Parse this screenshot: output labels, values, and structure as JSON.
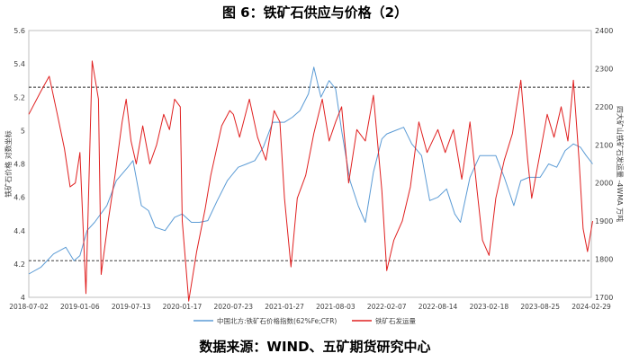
{
  "title": "图 6：铁矿石供应与价格（2）",
  "source": "数据来源：WIND、五矿期货研究中心",
  "chart_data": {
    "type": "line",
    "title": "图 6：铁矿石供应与价格（2）",
    "ylabel_left": "铁矿石价格 对数坐标",
    "ylabel_right": "四大矿山铁矿石发运量 -4WMA 万吨",
    "x_ticks": [
      "2018-07-02",
      "2019-01-06",
      "2019-07-13",
      "2020-01-17",
      "2020-07-23",
      "2021-01-27",
      "2021-08-03",
      "2022-02-07",
      "2022-08-14",
      "2023-02-18",
      "2023-08-25",
      "2024-02-29"
    ],
    "left_axis": {
      "min": 4,
      "max": 5.6,
      "ticks": [
        "4",
        "4.2",
        "4.4",
        "4.6",
        "4.8",
        "5",
        "5.2",
        "5.4",
        "5.6"
      ]
    },
    "right_axis": {
      "min": 1700,
      "max": 2400,
      "ticks": [
        "1700",
        "1800",
        "1900",
        "2000",
        "2100",
        "2200",
        "2300",
        "2400"
      ]
    },
    "reference_lines_left": [
      5.26,
      4.22
    ],
    "grid": false,
    "legend_position": "bottom-center",
    "series": [
      {
        "name": "中国北方:铁矿石价格指数(62%Fe;CFR)",
        "axis": "left",
        "color": "#5B9BD5",
        "points": [
          [
            "2018-07-02",
            4.14
          ],
          [
            "2018-08-15",
            4.18
          ],
          [
            "2018-10-01",
            4.26
          ],
          [
            "2018-11-15",
            4.3
          ],
          [
            "2018-12-15",
            4.22
          ],
          [
            "2019-01-06",
            4.25
          ],
          [
            "2019-02-01",
            4.4
          ],
          [
            "2019-03-01",
            4.45
          ],
          [
            "2019-04-15",
            4.55
          ],
          [
            "2019-05-20",
            4.7
          ],
          [
            "2019-07-01",
            4.78
          ],
          [
            "2019-07-20",
            4.82
          ],
          [
            "2019-08-20",
            4.55
          ],
          [
            "2019-09-15",
            4.52
          ],
          [
            "2019-10-10",
            4.42
          ],
          [
            "2019-11-15",
            4.4
          ],
          [
            "2019-12-20",
            4.48
          ],
          [
            "2020-01-17",
            4.5
          ],
          [
            "2020-02-20",
            4.45
          ],
          [
            "2020-03-20",
            4.45
          ],
          [
            "2020-04-20",
            4.46
          ],
          [
            "2020-05-25",
            4.58
          ],
          [
            "2020-07-01",
            4.7
          ],
          [
            "2020-08-10",
            4.78
          ],
          [
            "2020-09-10",
            4.8
          ],
          [
            "2020-10-10",
            4.82
          ],
          [
            "2020-11-10",
            4.9
          ],
          [
            "2020-12-15",
            5.05
          ],
          [
            "2021-01-27",
            5.05
          ],
          [
            "2021-02-25",
            5.08
          ],
          [
            "2021-03-25",
            5.12
          ],
          [
            "2021-04-25",
            5.22
          ],
          [
            "2021-05-15",
            5.38
          ],
          [
            "2021-06-10",
            5.2
          ],
          [
            "2021-07-10",
            5.3
          ],
          [
            "2021-08-03",
            5.25
          ],
          [
            "2021-08-25",
            5.0
          ],
          [
            "2021-09-25",
            4.7
          ],
          [
            "2021-10-25",
            4.55
          ],
          [
            "2021-11-20",
            4.45
          ],
          [
            "2021-12-20",
            4.75
          ],
          [
            "2022-01-20",
            4.95
          ],
          [
            "2022-02-07",
            4.98
          ],
          [
            "2022-03-10",
            5.0
          ],
          [
            "2022-04-10",
            5.02
          ],
          [
            "2022-05-10",
            4.92
          ],
          [
            "2022-06-15",
            4.85
          ],
          [
            "2022-07-15",
            4.58
          ],
          [
            "2022-08-14",
            4.6
          ],
          [
            "2022-09-15",
            4.65
          ],
          [
            "2022-10-15",
            4.5
          ],
          [
            "2022-11-05",
            4.45
          ],
          [
            "2022-12-10",
            4.72
          ],
          [
            "2023-01-15",
            4.85
          ],
          [
            "2023-02-18",
            4.85
          ],
          [
            "2023-03-15",
            4.85
          ],
          [
            "2023-04-15",
            4.72
          ],
          [
            "2023-05-20",
            4.55
          ],
          [
            "2023-06-15",
            4.7
          ],
          [
            "2023-07-15",
            4.72
          ],
          [
            "2023-08-25",
            4.72
          ],
          [
            "2023-09-25",
            4.8
          ],
          [
            "2023-10-25",
            4.78
          ],
          [
            "2023-11-25",
            4.88
          ],
          [
            "2023-12-25",
            4.92
          ],
          [
            "2024-01-20",
            4.9
          ],
          [
            "2024-02-10",
            4.85
          ],
          [
            "2024-03-05",
            4.8
          ]
        ]
      },
      {
        "name": "铁矿石发运量",
        "axis": "right",
        "color": "#E02020",
        "points": [
          [
            "2018-07-02",
            2180
          ],
          [
            "2018-08-15",
            2240
          ],
          [
            "2018-09-15",
            2280
          ],
          [
            "2018-10-15",
            2180
          ],
          [
            "2018-11-10",
            2090
          ],
          [
            "2018-12-01",
            1990
          ],
          [
            "2018-12-20",
            2000
          ],
          [
            "2019-01-06",
            2080
          ],
          [
            "2019-01-28",
            1710
          ],
          [
            "2019-02-20",
            2320
          ],
          [
            "2019-03-15",
            2220
          ],
          [
            "2019-03-25",
            1760
          ],
          [
            "2019-04-20",
            1900
          ],
          [
            "2019-05-15",
            2020
          ],
          [
            "2019-06-10",
            2160
          ],
          [
            "2019-06-25",
            2220
          ],
          [
            "2019-07-13",
            2110
          ],
          [
            "2019-08-01",
            2050
          ],
          [
            "2019-08-25",
            2150
          ],
          [
            "2019-09-20",
            2050
          ],
          [
            "2019-10-15",
            2100
          ],
          [
            "2019-11-10",
            2180
          ],
          [
            "2019-12-01",
            2140
          ],
          [
            "2019-12-20",
            2220
          ],
          [
            "2020-01-10",
            2200
          ],
          [
            "2020-01-17",
            1900
          ],
          [
            "2020-02-10",
            1690
          ],
          [
            "2020-03-10",
            1820
          ],
          [
            "2020-04-10",
            1930
          ],
          [
            "2020-05-01",
            2020
          ],
          [
            "2020-06-10",
            2150
          ],
          [
            "2020-07-10",
            2190
          ],
          [
            "2020-07-23",
            2180
          ],
          [
            "2020-08-15",
            2120
          ],
          [
            "2020-09-20",
            2220
          ],
          [
            "2020-10-20",
            2120
          ],
          [
            "2020-11-20",
            2060
          ],
          [
            "2020-12-20",
            2190
          ],
          [
            "2021-01-10",
            2160
          ],
          [
            "2021-01-27",
            1960
          ],
          [
            "2021-02-20",
            1780
          ],
          [
            "2021-03-15",
            1960
          ],
          [
            "2021-04-15",
            2020
          ],
          [
            "2021-05-15",
            2130
          ],
          [
            "2021-06-15",
            2220
          ],
          [
            "2021-07-10",
            2110
          ],
          [
            "2021-08-03",
            2160
          ],
          [
            "2021-08-25",
            2200
          ],
          [
            "2021-09-20",
            2000
          ],
          [
            "2021-10-20",
            2140
          ],
          [
            "2021-11-20",
            2110
          ],
          [
            "2021-12-20",
            2230
          ],
          [
            "2022-01-20",
            1980
          ],
          [
            "2022-02-07",
            1770
          ],
          [
            "2022-03-05",
            1850
          ],
          [
            "2022-04-05",
            1900
          ],
          [
            "2022-05-05",
            1990
          ],
          [
            "2022-06-05",
            2160
          ],
          [
            "2022-07-05",
            2080
          ],
          [
            "2022-08-14",
            2140
          ],
          [
            "2022-09-10",
            2080
          ],
          [
            "2022-10-10",
            2140
          ],
          [
            "2022-11-10",
            2010
          ],
          [
            "2022-12-10",
            2160
          ],
          [
            "2023-01-05",
            1980
          ],
          [
            "2023-01-25",
            1850
          ],
          [
            "2023-02-18",
            1810
          ],
          [
            "2023-03-15",
            1960
          ],
          [
            "2023-04-15",
            2060
          ],
          [
            "2023-05-15",
            2130
          ],
          [
            "2023-06-15",
            2270
          ],
          [
            "2023-07-10",
            2060
          ],
          [
            "2023-07-25",
            1960
          ],
          [
            "2023-08-25",
            2080
          ],
          [
            "2023-09-20",
            2180
          ],
          [
            "2023-10-15",
            2120
          ],
          [
            "2023-11-10",
            2200
          ],
          [
            "2023-12-05",
            2110
          ],
          [
            "2023-12-25",
            2270
          ],
          [
            "2024-01-15",
            2060
          ],
          [
            "2024-01-30",
            1880
          ],
          [
            "2024-02-15",
            1820
          ],
          [
            "2024-03-05",
            1900
          ]
        ]
      }
    ]
  }
}
